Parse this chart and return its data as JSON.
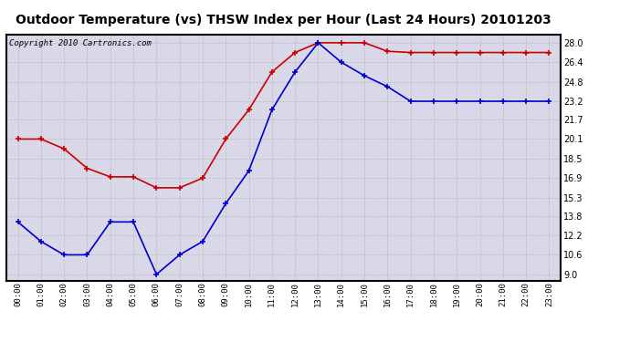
{
  "title": "Outdoor Temperature (vs) THSW Index per Hour (Last 24 Hours) 20101203",
  "copyright": "Copyright 2010 Cartronics.com",
  "hours": [
    "00:00",
    "01:00",
    "02:00",
    "03:00",
    "04:00",
    "05:00",
    "06:00",
    "07:00",
    "08:00",
    "09:00",
    "10:00",
    "11:00",
    "12:00",
    "13:00",
    "14:00",
    "15:00",
    "16:00",
    "17:00",
    "18:00",
    "19:00",
    "20:00",
    "21:00",
    "22:00",
    "23:00"
  ],
  "red_data": [
    20.1,
    20.1,
    19.3,
    17.7,
    17.0,
    17.0,
    16.1,
    16.1,
    16.9,
    20.1,
    22.5,
    25.6,
    27.2,
    28.0,
    28.0,
    28.0,
    27.3,
    27.2,
    27.2,
    27.2,
    27.2,
    27.2,
    27.2,
    27.2
  ],
  "blue_data": [
    13.3,
    11.7,
    10.6,
    10.6,
    13.3,
    13.3,
    9.0,
    10.6,
    11.7,
    14.8,
    17.5,
    22.5,
    25.6,
    28.0,
    26.4,
    25.3,
    24.4,
    23.2,
    23.2,
    23.2,
    23.2,
    23.2,
    23.2,
    23.2
  ],
  "red_color": "#cc0000",
  "blue_color": "#0000cc",
  "bg_color": "#ffffff",
  "plot_bg_color": "#d8d8e8",
  "grid_color": "#bbbbbb",
  "title_fontsize": 10,
  "copyright_fontsize": 6.5,
  "yticks": [
    9.0,
    10.6,
    12.2,
    13.8,
    15.3,
    16.9,
    18.5,
    20.1,
    21.7,
    23.2,
    24.8,
    26.4,
    28.0
  ],
  "ylim": [
    8.5,
    28.7
  ],
  "marker": "+"
}
